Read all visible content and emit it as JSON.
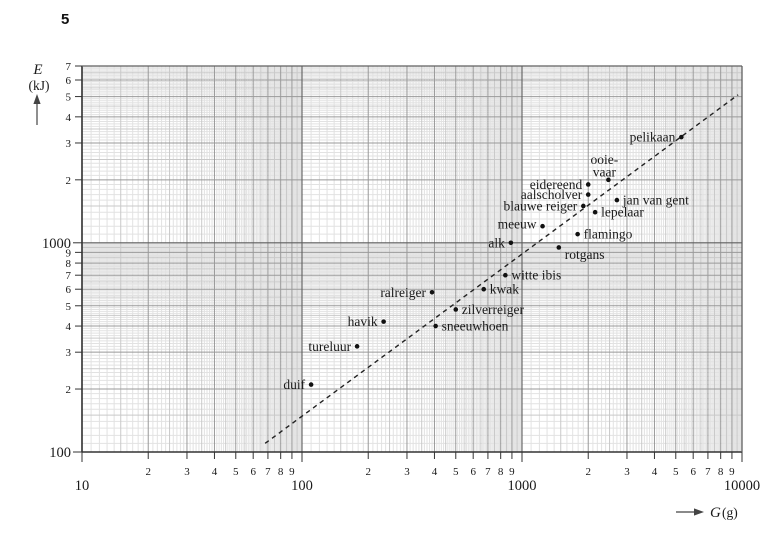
{
  "page": {
    "question_number": "5"
  },
  "chart_data": {
    "type": "scatter",
    "title": "",
    "xlabel": "G (g)",
    "ylabel": "E (kJ)",
    "x_axis": {
      "label_symbol": "G",
      "label_unit": "(g)",
      "scale": "log",
      "range": [
        10,
        10000
      ],
      "ticks": [
        {
          "v": 10,
          "label": "10",
          "major": true
        },
        {
          "v": 20,
          "label": "2"
        },
        {
          "v": 30,
          "label": "3"
        },
        {
          "v": 40,
          "label": "4"
        },
        {
          "v": 50,
          "label": "5"
        },
        {
          "v": 60,
          "label": "6"
        },
        {
          "v": 70,
          "label": "7"
        },
        {
          "v": 80,
          "label": "8"
        },
        {
          "v": 90,
          "label": "9"
        },
        {
          "v": 100,
          "label": "100",
          "major": true
        },
        {
          "v": 200,
          "label": "2"
        },
        {
          "v": 300,
          "label": "3"
        },
        {
          "v": 400,
          "label": "4"
        },
        {
          "v": 500,
          "label": "5"
        },
        {
          "v": 600,
          "label": "6"
        },
        {
          "v": 700,
          "label": "7"
        },
        {
          "v": 800,
          "label": "8"
        },
        {
          "v": 900,
          "label": "9"
        },
        {
          "v": 1000,
          "label": "1000",
          "major": true
        },
        {
          "v": 2000,
          "label": "2"
        },
        {
          "v": 3000,
          "label": "3"
        },
        {
          "v": 4000,
          "label": "4"
        },
        {
          "v": 5000,
          "label": "5"
        },
        {
          "v": 6000,
          "label": "6"
        },
        {
          "v": 7000,
          "label": "7"
        },
        {
          "v": 8000,
          "label": "8"
        },
        {
          "v": 9000,
          "label": "9"
        },
        {
          "v": 10000,
          "label": "10000",
          "major": true
        }
      ]
    },
    "y_axis": {
      "label_symbol": "E",
      "label_unit": "(kJ)",
      "scale": "log",
      "range": [
        100,
        7000
      ],
      "ticks": [
        {
          "v": 7000,
          "label": "7"
        },
        {
          "v": 6000,
          "label": "6"
        },
        {
          "v": 5000,
          "label": "5"
        },
        {
          "v": 4000,
          "label": "4"
        },
        {
          "v": 3000,
          "label": "3"
        },
        {
          "v": 2000,
          "label": "2"
        },
        {
          "v": 1000,
          "label": "1000",
          "major": true
        },
        {
          "v": 900,
          "label": "9"
        },
        {
          "v": 800,
          "label": "8"
        },
        {
          "v": 700,
          "label": "7"
        },
        {
          "v": 600,
          "label": "6"
        },
        {
          "v": 500,
          "label": "5"
        },
        {
          "v": 400,
          "label": "4"
        },
        {
          "v": 300,
          "label": "3"
        },
        {
          "v": 200,
          "label": "2"
        },
        {
          "v": 100,
          "label": "100",
          "major": true
        }
      ]
    },
    "points": [
      {
        "name": "duif",
        "G": 110,
        "E": 210,
        "label_side": "left"
      },
      {
        "name": "tureluur",
        "G": 178,
        "E": 320,
        "label_side": "left"
      },
      {
        "name": "havik",
        "G": 235,
        "E": 420,
        "label_side": "left"
      },
      {
        "name": "ralreiger",
        "G": 390,
        "E": 580,
        "label_side": "left"
      },
      {
        "name": "sneeuwhoen",
        "G": 405,
        "E": 400,
        "label_side": "right"
      },
      {
        "name": "zilverreiger",
        "G": 500,
        "E": 480,
        "label_side": "right"
      },
      {
        "name": "kwak",
        "G": 670,
        "E": 600,
        "label_side": "right"
      },
      {
        "name": "witte ibis",
        "G": 840,
        "E": 700,
        "label_side": "right"
      },
      {
        "name": "alk",
        "G": 890,
        "E": 1000,
        "label_side": "left"
      },
      {
        "name": "rotgans",
        "G": 1470,
        "E": 950,
        "label_side": "right",
        "label_dy": 7
      },
      {
        "name": "meeuw",
        "G": 1240,
        "E": 1200,
        "label_side": "left",
        "label_dy": -2
      },
      {
        "name": "flamingo",
        "G": 1790,
        "E": 1100,
        "label_side": "right"
      },
      {
        "name": "blauwe reiger",
        "G": 1900,
        "E": 1500,
        "label_side": "left"
      },
      {
        "name": "lepelaar",
        "G": 2150,
        "E": 1400,
        "label_side": "right"
      },
      {
        "name": "aalscholver",
        "G": 2000,
        "E": 1700,
        "label_side": "left"
      },
      {
        "name": "eidereend",
        "G": 2000,
        "E": 1900,
        "label_side": "left"
      },
      {
        "name": "ooievaar",
        "G": 2470,
        "E": 2000,
        "label_side": "above",
        "label_lines": [
          "ooie-",
          "vaar"
        ]
      },
      {
        "name": "jan van gent",
        "G": 2700,
        "E": 1600,
        "label_side": "right"
      },
      {
        "name": "pelikaan",
        "G": 5300,
        "E": 3200,
        "label_side": "left"
      }
    ],
    "trend_line": {
      "style": "dashed",
      "from": {
        "G": 68,
        "E": 110
      },
      "to": {
        "G": 9600,
        "E": 5100
      }
    },
    "layout_hints": {
      "grid": "log-log fine graph paper, minor lines every 0.1 mantissa",
      "legend": "none"
    },
    "colors": {
      "point": "#111111",
      "trend": "#222222",
      "grid_minor": "#e2e2e2",
      "grid_half": "#c9c9c9",
      "grid_integer": "#999999",
      "grid_decade": "#5f5f5f",
      "axis": "#333333",
      "text": "#1a1a1a"
    }
  }
}
